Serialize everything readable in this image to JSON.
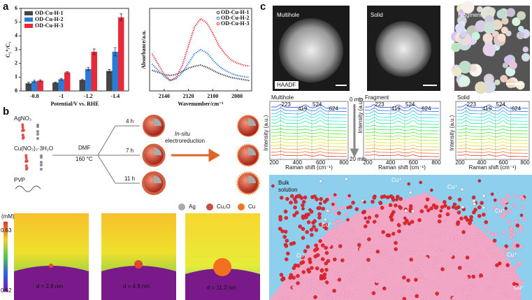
{
  "panel_labels": [
    "a",
    "b",
    "c"
  ],
  "chart_data": [
    {
      "type": "bar",
      "xlabel": "Potential/V vs. RHE",
      "ylabel": "C₂⁺/C₁",
      "categories": [
        "-0.8",
        "-1",
        "-1.2",
        "-1.4"
      ],
      "series": [
        {
          "name": "OD-Cu-H-1",
          "color": "#454545",
          "values": [
            0.55,
            0.6,
            0.8,
            1.45
          ],
          "errors": [
            0.08,
            0.05,
            0.06,
            0.1
          ]
        },
        {
          "name": "OD-Cu-H-2",
          "color": "#2a7bd5",
          "values": [
            0.7,
            0.85,
            1.6,
            2.85
          ],
          "errors": [
            0.07,
            0.06,
            0.12,
            0.3
          ]
        },
        {
          "name": "OD-Cu-H-3",
          "color": "#e8293a",
          "values": [
            0.75,
            1.35,
            2.85,
            5.35
          ],
          "errors": [
            0.06,
            0.05,
            0.2,
            0.25
          ]
        }
      ],
      "ylim": [
        0,
        6
      ],
      "yticks": [
        0,
        1,
        2,
        3,
        4,
        5,
        6
      ],
      "legend": "upper left"
    },
    {
      "type": "line",
      "xlabel": "Wavenumber/cm⁻¹",
      "ylabel": "Absorbance/a.u.",
      "x": [
        2150,
        2145,
        2140,
        2135,
        2130,
        2125,
        2120,
        2115,
        2110,
        2105,
        2100,
        2095,
        2090,
        2085,
        2080,
        2075,
        2070
      ],
      "series": [
        {
          "name": "OD-Cu-H-1",
          "color": "#333333",
          "values": [
            0.4,
            0.38,
            0.36,
            0.35,
            0.36,
            0.39,
            0.42,
            0.44,
            0.45,
            0.43,
            0.4,
            0.37,
            0.35,
            0.33,
            0.32,
            0.31,
            0.3
          ]
        },
        {
          "name": "OD-Cu-H-2",
          "color": "#2a7bd5",
          "values": [
            0.46,
            0.4,
            0.34,
            0.3,
            0.32,
            0.38,
            0.47,
            0.56,
            0.6,
            0.57,
            0.5,
            0.44,
            0.4,
            0.37,
            0.35,
            0.34,
            0.33
          ]
        },
        {
          "name": "OD-Cu-H-3",
          "color": "#e8293a",
          "values": [
            0.56,
            0.46,
            0.36,
            0.3,
            0.33,
            0.45,
            0.64,
            0.82,
            0.9,
            0.86,
            0.76,
            0.64,
            0.56,
            0.5,
            0.47,
            0.45,
            0.44
          ]
        }
      ],
      "xlim": [
        2152,
        2068
      ],
      "xticks": [
        2140,
        2120,
        2100,
        2080
      ],
      "ylim": [
        0.2,
        1
      ],
      "legend": "upper right"
    }
  ],
  "scheme": {
    "reagents": [
      "AgNO₃",
      "Cu(NO₃)₂·3H₂O",
      "PVP"
    ],
    "solvent": "DMF",
    "temperature": "160 °C",
    "times": [
      "4 h",
      "7 h",
      "11 h"
    ],
    "process": [
      "In-situ",
      "electroreduction"
    ],
    "legend": [
      "Ag",
      "Cu₂O",
      "Cu"
    ]
  },
  "simulation": {
    "unit": "(mM)",
    "scale_max": "0.63",
    "scale_min": "0.62",
    "sizes": [
      "d = 2.8 nm",
      "d = 4.9 nm",
      "d = 11.2 nm"
    ]
  },
  "micrographs": {
    "titles": [
      "Multihole",
      "Solid",
      "Fragment"
    ],
    "detector": "HAADF"
  },
  "raman": {
    "titles": [
      "Multihole",
      "Fragment",
      "Solid"
    ],
    "peaks": [
      "223",
      "419",
      "524",
      "624"
    ],
    "time_start": "0 min",
    "time_end": "20 min",
    "x_label": "Raman shift (cm⁻¹)",
    "y_label": "Intensity (a.u.)",
    "x_ticks": [
      "200",
      "400",
      "600",
      "800"
    ]
  },
  "model": {
    "region": [
      "Bulk",
      "solution"
    ],
    "ions": [
      "Cu⁺",
      "Cu⁺",
      "Cu⁺",
      "Cu⁺",
      "Cu⁺",
      "Cu⁺"
    ],
    "atom": "Cu"
  }
}
